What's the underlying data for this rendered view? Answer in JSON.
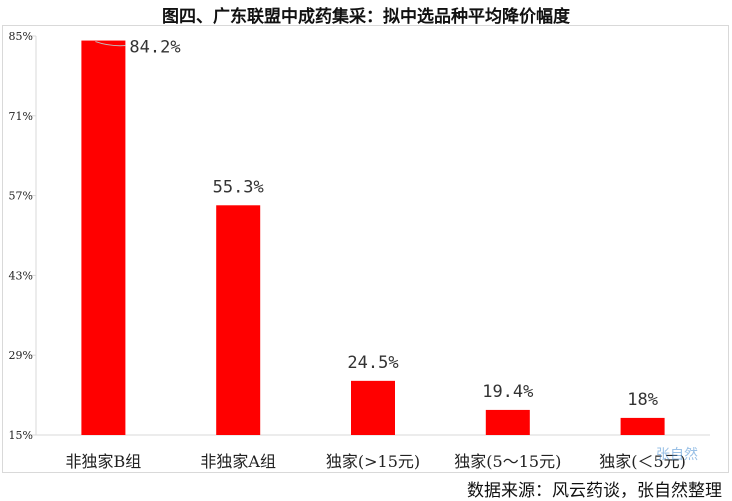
{
  "chart_data": {
    "type": "bar",
    "title": "图四、广东联盟中成药集采：拟中选品种平均降价幅度",
    "categories": [
      "非独家B组",
      "非独家A组",
      "独家(>15元)",
      "独家(5～15元)",
      "独家(＜5元)"
    ],
    "values": [
      84.2,
      55.3,
      24.5,
      19.4,
      18
    ],
    "data_labels": [
      "84.2%",
      "55.3%",
      "24.5%",
      "19.4%",
      "18%"
    ],
    "ylim": [
      15,
      85
    ],
    "yticks": [
      15,
      29,
      43,
      57,
      71,
      85
    ],
    "ytick_labels": [
      "15%",
      "29%",
      "43%",
      "57%",
      "71%",
      "85%"
    ],
    "xlabel": "",
    "ylabel": "",
    "grid": false,
    "legend": "none",
    "colors": {
      "bar": "#ff0000",
      "axis": "#d9d9d9"
    }
  },
  "source": "数据来源：风云药谈，张自然整理",
  "watermark": "张自然"
}
